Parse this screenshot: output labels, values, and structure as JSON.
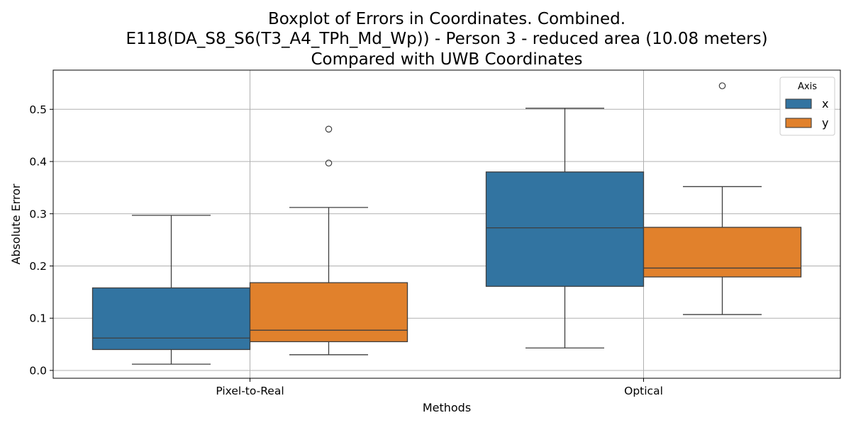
{
  "chart_data": {
    "type": "box",
    "title_lines": [
      "Boxplot of Errors in Coordinates. Combined.",
      "E118(DA_S8_S6(T3_A4_TPh_Md_Wp)) - Person 3 - reduced area (10.08 meters)",
      "Compared with UWB Coordinates"
    ],
    "xlabel": "Methods",
    "ylabel": "Absolute Error",
    "categories": [
      "Pixel-to-Real",
      "Optical"
    ],
    "ylim": [
      -0.015,
      0.575
    ],
    "yticks": [
      "0.0",
      "0.1",
      "0.2",
      "0.3",
      "0.4",
      "0.5"
    ],
    "grid": true,
    "legend": {
      "title": "Axis",
      "placement": "top-right"
    },
    "series": [
      {
        "name": "x",
        "color": "#3274a1",
        "boxes": [
          {
            "whisker_low": 0.012,
            "q1": 0.04,
            "median": 0.062,
            "q3": 0.158,
            "whisker_high": 0.297,
            "outliers": []
          },
          {
            "whisker_low": 0.043,
            "q1": 0.161,
            "median": 0.273,
            "q3": 0.38,
            "whisker_high": 0.502,
            "outliers": []
          }
        ]
      },
      {
        "name": "y",
        "color": "#e1812c",
        "boxes": [
          {
            "whisker_low": 0.03,
            "q1": 0.055,
            "median": 0.077,
            "q3": 0.168,
            "whisker_high": 0.312,
            "outliers": [
              0.397,
              0.462
            ]
          },
          {
            "whisker_low": 0.107,
            "q1": 0.179,
            "median": 0.196,
            "q3": 0.274,
            "whisker_high": 0.352,
            "outliers": [
              0.545
            ]
          }
        ]
      }
    ]
  }
}
